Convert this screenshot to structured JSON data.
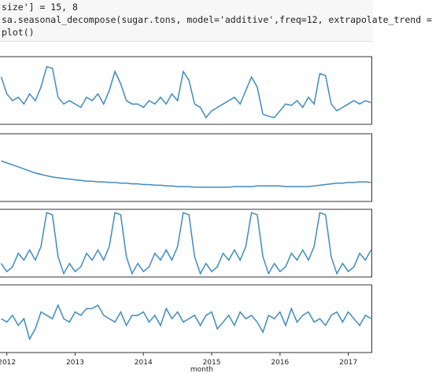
{
  "code": [
    "size'] = 15, 8",
    "sa.seasonal_decompose(sugar.tons, model='additive',freq=12, extrapolate_trend =",
    "plot()"
  ],
  "chart_data": [
    {
      "type": "line",
      "color": "#3f8bbf",
      "ylim": [
        0,
        100
      ],
      "x": [
        2011.917,
        2012,
        2012.083,
        2012.167,
        2012.25,
        2012.333,
        2012.417,
        2012.5,
        2012.583,
        2012.667,
        2012.75,
        2012.833,
        2012.917,
        2013,
        2013.083,
        2013.167,
        2013.25,
        2013.333,
        2013.417,
        2013.5,
        2013.583,
        2013.667,
        2013.75,
        2013.833,
        2013.917,
        2014,
        2014.083,
        2014.167,
        2014.25,
        2014.333,
        2014.417,
        2014.5,
        2014.583,
        2014.667,
        2014.75,
        2014.833,
        2014.917,
        2015,
        2015.083,
        2015.167,
        2015.25,
        2015.333,
        2015.417,
        2015.5,
        2015.583,
        2015.667,
        2015.75,
        2015.833,
        2015.917,
        2016,
        2016.083,
        2016.167,
        2016.25,
        2016.333,
        2016.417,
        2016.5,
        2016.583,
        2016.667,
        2016.75,
        2016.833,
        2016.917,
        2017,
        2017.083,
        2017.167,
        2017.25,
        2017.333
      ],
      "xlim": [
        2011.9,
        2017.35
      ],
      "values": [
        70,
        45,
        35,
        40,
        30,
        45,
        35,
        55,
        85,
        83,
        40,
        30,
        35,
        30,
        25,
        40,
        35,
        45,
        30,
        50,
        78,
        60,
        35,
        30,
        30,
        25,
        35,
        30,
        40,
        30,
        45,
        35,
        78,
        65,
        30,
        25,
        10,
        20,
        25,
        30,
        35,
        40,
        30,
        50,
        70,
        55,
        15,
        12,
        10,
        20,
        30,
        28,
        35,
        25,
        40,
        30,
        75,
        72,
        30,
        20,
        25,
        30,
        35,
        30,
        35,
        32
      ]
    },
    {
      "type": "line",
      "color": "#3f8bbf",
      "ylim": [
        0,
        100
      ],
      "x": [
        2011.917,
        2012,
        2012.083,
        2012.167,
        2012.25,
        2012.333,
        2012.417,
        2012.5,
        2012.583,
        2012.667,
        2012.75,
        2012.833,
        2012.917,
        2013,
        2013.083,
        2013.167,
        2013.25,
        2013.333,
        2013.417,
        2013.5,
        2013.583,
        2013.667,
        2013.75,
        2013.833,
        2013.917,
        2014,
        2014.083,
        2014.167,
        2014.25,
        2014.333,
        2014.417,
        2014.5,
        2014.583,
        2014.667,
        2014.75,
        2014.833,
        2014.917,
        2015,
        2015.083,
        2015.167,
        2015.25,
        2015.333,
        2015.417,
        2015.5,
        2015.583,
        2015.667,
        2015.75,
        2015.833,
        2015.917,
        2016,
        2016.083,
        2016.167,
        2016.25,
        2016.333,
        2016.417,
        2016.5,
        2016.583,
        2016.667,
        2016.75,
        2016.833,
        2016.917,
        2017,
        2017.083,
        2017.167,
        2017.25,
        2017.333
      ],
      "xlim": [
        2011.9,
        2017.35
      ],
      "values": [
        60,
        57,
        54,
        51,
        48,
        45,
        42,
        40,
        38,
        36,
        35,
        34,
        33,
        32,
        31,
        30,
        30,
        29,
        29,
        28,
        28,
        27,
        27,
        26,
        26,
        25,
        25,
        24,
        24,
        23,
        23,
        22,
        22,
        22,
        21,
        21,
        21,
        21,
        21,
        21,
        21,
        22,
        22,
        22,
        22,
        23,
        23,
        23,
        23,
        23,
        22,
        22,
        22,
        22,
        22,
        23,
        24,
        25,
        26,
        27,
        27,
        28,
        28,
        29,
        29,
        28
      ]
    },
    {
      "type": "line",
      "color": "#3f8bbf",
      "ylim": [
        0,
        100
      ],
      "x": [
        2011.917,
        2012,
        2012.083,
        2012.167,
        2012.25,
        2012.333,
        2012.417,
        2012.5,
        2012.583,
        2012.667,
        2012.75,
        2012.833,
        2012.917,
        2013,
        2013.083,
        2013.167,
        2013.25,
        2013.333,
        2013.417,
        2013.5,
        2013.583,
        2013.667,
        2013.75,
        2013.833,
        2013.917,
        2014,
        2014.083,
        2014.167,
        2014.25,
        2014.333,
        2014.417,
        2014.5,
        2014.583,
        2014.667,
        2014.75,
        2014.833,
        2014.917,
        2015,
        2015.083,
        2015.167,
        2015.25,
        2015.333,
        2015.417,
        2015.5,
        2015.583,
        2015.667,
        2015.75,
        2015.833,
        2015.917,
        2016,
        2016.083,
        2016.167,
        2016.25,
        2016.333,
        2016.417,
        2016.5,
        2016.583,
        2016.667,
        2016.75,
        2016.833,
        2016.917,
        2017,
        2017.083,
        2017.167,
        2017.25,
        2017.333
      ],
      "xlim": [
        2011.9,
        2017.35
      ],
      "values": [
        20,
        8,
        15,
        35,
        25,
        40,
        25,
        45,
        95,
        92,
        30,
        5,
        20,
        8,
        15,
        35,
        25,
        40,
        25,
        45,
        95,
        92,
        30,
        5,
        20,
        8,
        15,
        35,
        25,
        40,
        25,
        45,
        95,
        92,
        30,
        5,
        20,
        8,
        15,
        35,
        25,
        40,
        25,
        45,
        95,
        92,
        30,
        5,
        20,
        8,
        15,
        35,
        25,
        40,
        25,
        45,
        95,
        92,
        30,
        5,
        20,
        8,
        15,
        35,
        25,
        40
      ]
    },
    {
      "type": "line",
      "color": "#3f8bbf",
      "ylim": [
        0,
        100
      ],
      "x": [
        2011.917,
        2012,
        2012.083,
        2012.167,
        2012.25,
        2012.333,
        2012.417,
        2012.5,
        2012.583,
        2012.667,
        2012.75,
        2012.833,
        2012.917,
        2013,
        2013.083,
        2013.167,
        2013.25,
        2013.333,
        2013.417,
        2013.5,
        2013.583,
        2013.667,
        2013.75,
        2013.833,
        2013.917,
        2014,
        2014.083,
        2014.167,
        2014.25,
        2014.333,
        2014.417,
        2014.5,
        2014.583,
        2014.667,
        2014.75,
        2014.833,
        2014.917,
        2015,
        2015.083,
        2015.167,
        2015.25,
        2015.333,
        2015.417,
        2015.5,
        2015.583,
        2015.667,
        2015.75,
        2015.833,
        2015.917,
        2016,
        2016.083,
        2016.167,
        2016.25,
        2016.333,
        2016.417,
        2016.5,
        2016.583,
        2016.667,
        2016.75,
        2016.833,
        2016.917,
        2017,
        2017.083,
        2017.167,
        2017.25,
        2017.333
      ],
      "xlim": [
        2011.9,
        2017.35
      ],
      "xticks": [
        2012,
        2013,
        2014,
        2015,
        2016,
        2017
      ],
      "xlabel": "month",
      "values": [
        50,
        45,
        55,
        40,
        50,
        20,
        35,
        60,
        55,
        50,
        70,
        50,
        45,
        60,
        55,
        65,
        65,
        70,
        55,
        50,
        45,
        60,
        40,
        55,
        55,
        60,
        45,
        55,
        40,
        65,
        50,
        60,
        45,
        50,
        55,
        40,
        55,
        60,
        35,
        45,
        55,
        40,
        60,
        50,
        55,
        45,
        30,
        55,
        50,
        60,
        40,
        65,
        45,
        55,
        60,
        45,
        50,
        40,
        55,
        60,
        45,
        60,
        50,
        40,
        55,
        50
      ]
    }
  ]
}
